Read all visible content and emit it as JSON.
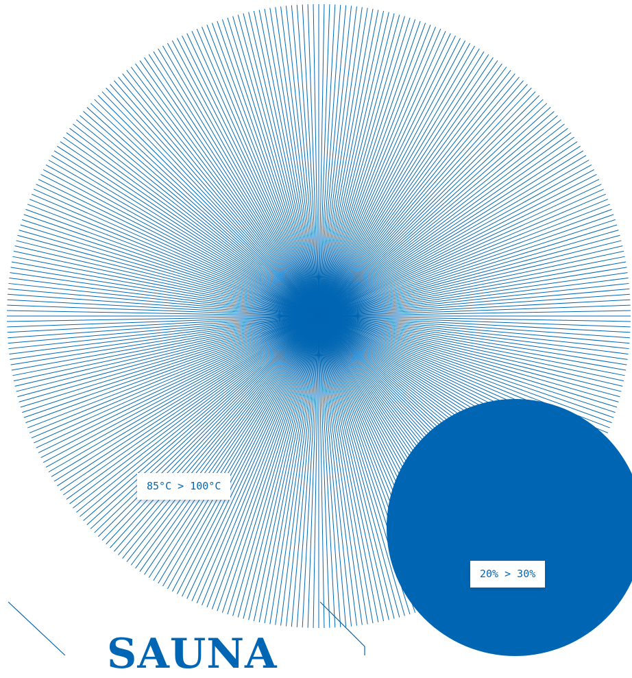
{
  "colors": {
    "accent": "#0066b3",
    "background": "#ffffff"
  },
  "sunburst": {
    "ray_count": 360
  },
  "labels": {
    "temperature": "85°C > 100°C",
    "humidity": "20% > 30%"
  },
  "heading": "SAUNA"
}
